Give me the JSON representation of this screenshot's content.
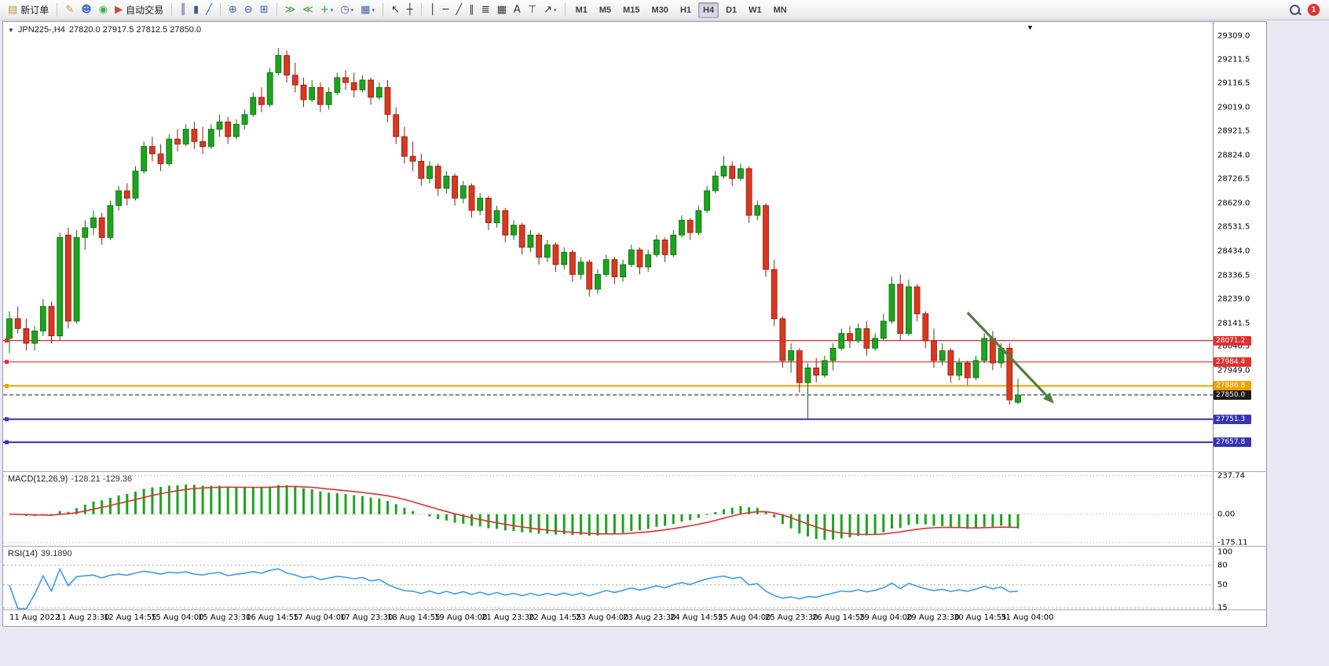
{
  "toolbar": {
    "badge": "1",
    "groups": [
      {
        "items": [
          {
            "name": "new-order-button",
            "glyph": "▤",
            "color": "#b8973a",
            "label": "新订单"
          }
        ]
      },
      {
        "items": [
          {
            "name": "mql5-wizard-icon",
            "glyph": "✎",
            "color": "#c09a2e"
          },
          {
            "name": "community-icon",
            "glyph": "☻",
            "color": "#4a76c8"
          },
          {
            "name": "market-news-icon",
            "glyph": "◉",
            "color": "#3fae49"
          },
          {
            "name": "algo-trading-button",
            "glyph": "▶",
            "color": "#c04848",
            "label": "自动交易"
          }
        ]
      },
      {
        "items": [
          {
            "name": "bar-chart-button",
            "glyph": "║",
            "color": "#3f5f8f"
          },
          {
            "name": "candlestick-chart-button",
            "glyph": "▮",
            "color": "#3f5f8f"
          },
          {
            "name": "line-chart-button",
            "glyph": "╱",
            "color": "#3f5f8f"
          }
        ]
      },
      {
        "items": [
          {
            "name": "zoom-in-button",
            "glyph": "⊕",
            "color": "#41619c"
          },
          {
            "name": "zoom-out-button",
            "glyph": "⊖",
            "color": "#41619c"
          },
          {
            "name": "tile-windows-button",
            "glyph": "⊞",
            "color": "#41619c"
          }
        ]
      },
      {
        "items": [
          {
            "name": "auto-scroll-button",
            "glyph": "≫",
            "color": "#3f8f3f"
          },
          {
            "name": "chart-shift-button",
            "glyph": "≪",
            "color": "#3f8f3f"
          },
          {
            "name": "indicators-button",
            "glyph": "+",
            "color": "#2f9f2f",
            "caret": true
          },
          {
            "name": "period-button",
            "glyph": "◷",
            "color": "#41619c",
            "caret": true
          },
          {
            "name": "templates-button",
            "glyph": "▦",
            "color": "#41619c",
            "caret": true
          }
        ]
      },
      {
        "items": [
          {
            "name": "cursor-button",
            "glyph": "↖",
            "color": "#333333"
          },
          {
            "name": "crosshair-button",
            "glyph": "┼",
            "color": "#333333"
          }
        ]
      },
      {
        "items": [
          {
            "name": "vertical-line-button",
            "glyph": "│",
            "color": "#333333"
          },
          {
            "name": "horizontal-line-button",
            "glyph": "─",
            "color": "#333333"
          },
          {
            "name": "trendline-button",
            "glyph": "╱",
            "color": "#333333"
          },
          {
            "name": "equidistant-channel-button",
            "glyph": "∥",
            "color": "#333333"
          },
          {
            "name": "fibonacci-button",
            "glyph": "≣",
            "color": "#333333"
          },
          {
            "name": "shapes-button",
            "glyph": "▦",
            "color": "#333333"
          },
          {
            "name": "text-button",
            "glyph": "A",
            "color": "#333333"
          },
          {
            "name": "text-label-button",
            "glyph": "⊤",
            "color": "#333333"
          },
          {
            "name": "arrows-button",
            "glyph": "↗",
            "color": "#333333",
            "caret": true
          }
        ]
      }
    ],
    "timeframes": [
      "M1",
      "M5",
      "M15",
      "M30",
      "H1",
      "H4",
      "D1",
      "W1",
      "MN"
    ],
    "active_timeframe": "H4"
  },
  "chart": {
    "header_marker": "▼",
    "symbol_header": "JPN225-,H4",
    "ohlc_header": "27820.0 27917.5 27812.5 27850.0",
    "shift_marker": "▼",
    "price_axis_labels": [
      "29309.0",
      "29211.5",
      "29116.5",
      "29019.0",
      "28921.5",
      "28824.0",
      "28726.5",
      "28629.0",
      "28531.5",
      "28434.0",
      "28336.5",
      "28239.0",
      "28141.5",
      "28046.5",
      "27949.0"
    ],
    "time_axis_labels": [
      "11 Aug 2022",
      "11 Aug 23:30",
      "12 Aug 14:55",
      "15 Aug 04:00",
      "15 Aug 23:30",
      "16 Aug 14:55",
      "17 Aug 04:00",
      "17 Aug 23:30",
      "18 Aug 14:55",
      "19 Aug 04:00",
      "21 Aug 23:30",
      "22 Aug 14:55",
      "23 Aug 04:00",
      "23 Aug 23:30",
      "24 Aug 14:55",
      "25 Aug 04:00",
      "25 Aug 23:30",
      "26 Aug 14:55",
      "29 Aug 04:00",
      "29 Aug 23:30",
      "30 Aug 14:55",
      "31 Aug 04:00"
    ]
  },
  "chart_data": {
    "type": "candlestick",
    "symbol": "JPN225-",
    "timeframe": "H4",
    "current_bar": {
      "open": 27820.0,
      "high": 27917.5,
      "low": 27812.5,
      "close": 27850.0
    },
    "up_color": "#1ca41c",
    "down_color": "#d8381f",
    "up_stroke": "#0b6b0b",
    "down_stroke": "#8f1d10",
    "ylim": [
      27540,
      29366
    ],
    "ohlc": [
      [
        28080,
        28190,
        28020,
        28160
      ],
      [
        28160,
        28210,
        28100,
        28120
      ],
      [
        28120,
        28160,
        28030,
        28060
      ],
      [
        28060,
        28130,
        28030,
        28110
      ],
      [
        28110,
        28240,
        28090,
        28210
      ],
      [
        28210,
        28230,
        28060,
        28090
      ],
      [
        28090,
        28510,
        28070,
        28490
      ],
      [
        28500,
        28530,
        28120,
        28150
      ],
      [
        28150,
        28520,
        28140,
        28490
      ],
      [
        28490,
        28560,
        28440,
        28530
      ],
      [
        28530,
        28600,
        28500,
        28570
      ],
      [
        28570,
        28590,
        28460,
        28490
      ],
      [
        28490,
        28640,
        28480,
        28620
      ],
      [
        28620,
        28700,
        28600,
        28680
      ],
      [
        28680,
        28710,
        28620,
        28650
      ],
      [
        28650,
        28780,
        28640,
        28760
      ],
      [
        28760,
        28880,
        28750,
        28860
      ],
      [
        28860,
        28900,
        28800,
        28830
      ],
      [
        28830,
        28870,
        28760,
        28790
      ],
      [
        28790,
        28910,
        28780,
        28890
      ],
      [
        28890,
        28930,
        28840,
        28870
      ],
      [
        28870,
        28950,
        28860,
        28930
      ],
      [
        28930,
        28960,
        28850,
        28880
      ],
      [
        28880,
        28940,
        28830,
        28860
      ],
      [
        28860,
        28950,
        28850,
        28930
      ],
      [
        28930,
        28990,
        28900,
        28960
      ],
      [
        28960,
        28980,
        28870,
        28900
      ],
      [
        28900,
        28970,
        28890,
        28950
      ],
      [
        28950,
        29010,
        28930,
        28990
      ],
      [
        28990,
        29080,
        28980,
        29060
      ],
      [
        29060,
        29100,
        29000,
        29030
      ],
      [
        29030,
        29180,
        29020,
        29160
      ],
      [
        29160,
        29260,
        29150,
        29230
      ],
      [
        29230,
        29250,
        29120,
        29150
      ],
      [
        29150,
        29200,
        29080,
        29110
      ],
      [
        29110,
        29140,
        29020,
        29050
      ],
      [
        29050,
        29130,
        29040,
        29100
      ],
      [
        29100,
        29120,
        29000,
        29030
      ],
      [
        29030,
        29100,
        29010,
        29080
      ],
      [
        29080,
        29160,
        29070,
        29140
      ],
      [
        29140,
        29170,
        29090,
        29120
      ],
      [
        29120,
        29160,
        29060,
        29090
      ],
      [
        29090,
        29150,
        29080,
        29130
      ],
      [
        29130,
        29140,
        29030,
        29060
      ],
      [
        29060,
        29120,
        29050,
        29100
      ],
      [
        29100,
        29130,
        28960,
        28990
      ],
      [
        28990,
        29020,
        28870,
        28900
      ],
      [
        28900,
        28940,
        28790,
        28820
      ],
      [
        28820,
        28880,
        28760,
        28800
      ],
      [
        28800,
        28830,
        28700,
        28730
      ],
      [
        28730,
        28800,
        28710,
        28780
      ],
      [
        28780,
        28790,
        28660,
        28690
      ],
      [
        28690,
        28760,
        28670,
        28740
      ],
      [
        28740,
        28750,
        28620,
        28650
      ],
      [
        28650,
        28720,
        28630,
        28700
      ],
      [
        28700,
        28710,
        28570,
        28600
      ],
      [
        28600,
        28670,
        28580,
        28650
      ],
      [
        28650,
        28660,
        28520,
        28550
      ],
      [
        28550,
        28620,
        28530,
        28600
      ],
      [
        28600,
        28610,
        28470,
        28500
      ],
      [
        28500,
        28560,
        28480,
        28540
      ],
      [
        28540,
        28550,
        28420,
        28450
      ],
      [
        28450,
        28520,
        28430,
        28500
      ],
      [
        28500,
        28510,
        28380,
        28410
      ],
      [
        28410,
        28480,
        28390,
        28460
      ],
      [
        28460,
        28470,
        28350,
        28380
      ],
      [
        28380,
        28450,
        28360,
        28430
      ],
      [
        28430,
        28440,
        28310,
        28340
      ],
      [
        28340,
        28410,
        28320,
        28390
      ],
      [
        28390,
        28400,
        28250,
        28280
      ],
      [
        28280,
        28360,
        28260,
        28340
      ],
      [
        28340,
        28420,
        28330,
        28400
      ],
      [
        28400,
        28410,
        28300,
        28330
      ],
      [
        28330,
        28400,
        28310,
        28380
      ],
      [
        28380,
        28460,
        28370,
        28440
      ],
      [
        28440,
        28450,
        28340,
        28370
      ],
      [
        28370,
        28440,
        28350,
        28420
      ],
      [
        28420,
        28500,
        28410,
        28480
      ],
      [
        28480,
        28490,
        28390,
        28420
      ],
      [
        28420,
        28520,
        28410,
        28500
      ],
      [
        28500,
        28580,
        28490,
        28560
      ],
      [
        28560,
        28570,
        28480,
        28510
      ],
      [
        28510,
        28620,
        28500,
        28600
      ],
      [
        28600,
        28700,
        28590,
        28680
      ],
      [
        28680,
        28760,
        28670,
        28740
      ],
      [
        28740,
        28820,
        28730,
        28780
      ],
      [
        28780,
        28800,
        28700,
        28730
      ],
      [
        28730,
        28790,
        28720,
        28770
      ],
      [
        28770,
        28780,
        28550,
        28580
      ],
      [
        28580,
        28640,
        28560,
        28620
      ],
      [
        28620,
        28630,
        28330,
        28360
      ],
      [
        28360,
        28400,
        28130,
        28160
      ],
      [
        28160,
        28170,
        27960,
        27990
      ],
      [
        27990,
        28060,
        27940,
        28030
      ],
      [
        28030,
        28040,
        27860,
        27900
      ],
      [
        27900,
        27980,
        27750,
        27960
      ],
      [
        27960,
        28000,
        27900,
        27930
      ],
      [
        27930,
        28010,
        27920,
        27990
      ],
      [
        27990,
        28060,
        27950,
        28040
      ],
      [
        28040,
        28120,
        28030,
        28100
      ],
      [
        28100,
        28130,
        28040,
        28070
      ],
      [
        28070,
        28140,
        28060,
        28120
      ],
      [
        28120,
        28150,
        28010,
        28040
      ],
      [
        28040,
        28100,
        28030,
        28080
      ],
      [
        28080,
        28180,
        28070,
        28150
      ],
      [
        28150,
        28330,
        28140,
        28300
      ],
      [
        28300,
        28340,
        28070,
        28100
      ],
      [
        28100,
        28320,
        28090,
        28290
      ],
      [
        28290,
        28300,
        28150,
        28180
      ],
      [
        28180,
        28190,
        28040,
        28070
      ],
      [
        28070,
        28120,
        27960,
        27990
      ],
      [
        27990,
        28060,
        27970,
        28030
      ],
      [
        28030,
        28040,
        27900,
        27930
      ],
      [
        27930,
        28000,
        27910,
        27980
      ],
      [
        27980,
        27990,
        27890,
        27920
      ],
      [
        27920,
        28010,
        27910,
        27990
      ],
      [
        27990,
        28100,
        27980,
        28080
      ],
      [
        28080,
        28110,
        27950,
        27980
      ],
      [
        27980,
        28060,
        27960,
        28040
      ],
      [
        28040,
        28060,
        27810,
        27830
      ],
      [
        27820,
        27917.5,
        27812.5,
        27850
      ]
    ],
    "hlines": [
      {
        "price": 28071.2,
        "label": "28071.2",
        "color": "#e03030",
        "width": 1.2,
        "style": "solid"
      },
      {
        "price": 27984.4,
        "label": "27984.4",
        "color": "#e03030",
        "width": 1.2,
        "style": "solid"
      },
      {
        "price": 27886.8,
        "label": "27886.8",
        "color": "#f0a000",
        "width": 2,
        "style": "solid"
      },
      {
        "price": 27850.0,
        "label": "27850.0",
        "color": "#1a1a1a",
        "width": 1,
        "style": "dash"
      },
      {
        "price": 27751.3,
        "label": "27751.3",
        "color": "#3434b4",
        "width": 2,
        "style": "solid"
      },
      {
        "price": 27657.8,
        "label": "27657.8",
        "color": "#3434b4",
        "width": 2,
        "style": "solid"
      }
    ],
    "arrow": {
      "from_index": 114,
      "from_price": 28185,
      "to_index": 124.3,
      "to_price": 27815,
      "color": "#4c8040"
    },
    "indicators": [
      {
        "type": "MACD",
        "params": [
          12,
          26,
          9
        ],
        "label": "MACD(12,26,9)",
        "values": "-128.21 -129.36",
        "axis_labels": [
          "237.74",
          "0.00",
          "-175.11"
        ],
        "histogram_color": "#1ca41c",
        "signal_color": "#e03030"
      },
      {
        "type": "RSI",
        "params": [
          14
        ],
        "label": "RSI(14)",
        "values": "39.1890",
        "axis_labels": [
          "100",
          "80",
          "50",
          "15"
        ],
        "levels": [
          80,
          50,
          15
        ],
        "line_color": "#3d9be9"
      }
    ]
  }
}
